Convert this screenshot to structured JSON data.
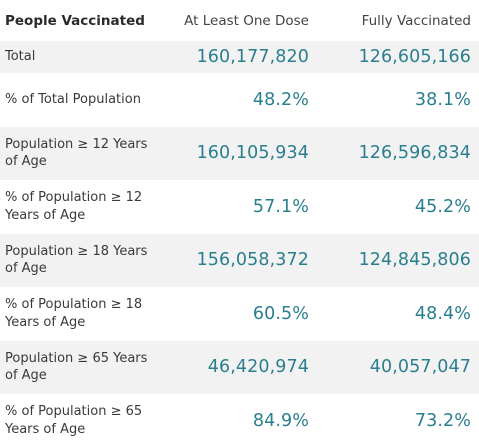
{
  "table": {
    "headers": {
      "label": "People Vaccinated",
      "at_least_one_dose": "At Least One Dose",
      "fully_vaccinated": "Fully Vaccinated"
    },
    "rows": [
      {
        "label": "Total",
        "at_least_one_dose": "160,177,820",
        "fully_vaccinated": "126,605,166"
      },
      {
        "label": "% of Total Population",
        "at_least_one_dose": "48.2%",
        "fully_vaccinated": "38.1%"
      },
      {
        "label": "Population ≥ 12 Years of Age",
        "at_least_one_dose": "160,105,934",
        "fully_vaccinated": "126,596,834"
      },
      {
        "label": "% of Population ≥ 12 Years of Age",
        "at_least_one_dose": "57.1%",
        "fully_vaccinated": "45.2%"
      },
      {
        "label": "Population ≥ 18 Years of Age",
        "at_least_one_dose": "156,058,372",
        "fully_vaccinated": "124,845,806"
      },
      {
        "label": "% of Population ≥ 18 Years of Age",
        "at_least_one_dose": "60.5%",
        "fully_vaccinated": "48.4%"
      },
      {
        "label": "Population ≥ 65 Years of Age",
        "at_least_one_dose": "46,420,974",
        "fully_vaccinated": "40,057,047"
      },
      {
        "label": "% of Population ≥ 65 Years of Age",
        "at_least_one_dose": "84.9%",
        "fully_vaccinated": "73.2%"
      }
    ]
  },
  "colors": {
    "value_text": "#2a7f8f",
    "row_shade": "#f2f2f2",
    "label_text": "#3a3a3a"
  }
}
